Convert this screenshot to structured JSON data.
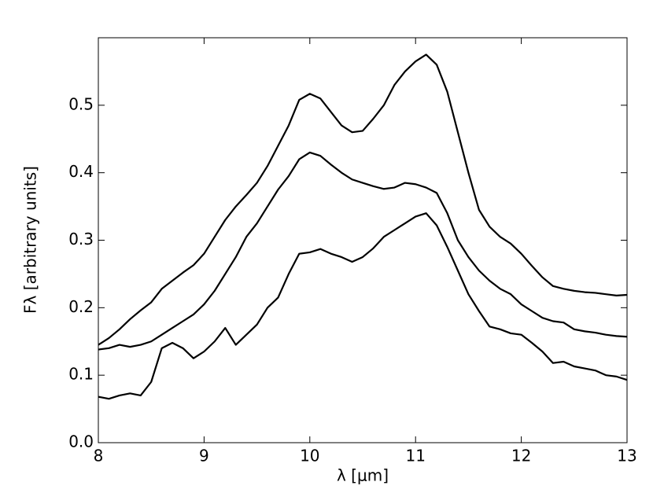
{
  "chart_data": {
    "type": "line",
    "xlabel": "λ [μm]",
    "ylabel": "Fλ [arbitrary units]",
    "x": [
      8.0,
      8.1,
      8.2,
      8.3,
      8.4,
      8.5,
      8.6,
      8.7,
      8.8,
      8.9,
      9.0,
      9.1,
      9.2,
      9.3,
      9.4,
      9.5,
      9.6,
      9.7,
      9.8,
      9.9,
      10.0,
      10.1,
      10.2,
      10.3,
      10.4,
      10.5,
      10.6,
      10.7,
      10.8,
      10.9,
      11.0,
      11.1,
      11.2,
      11.3,
      11.4,
      11.5,
      11.6,
      11.7,
      11.8,
      11.9,
      12.0,
      12.1,
      12.2,
      12.3,
      12.4,
      12.5,
      12.6,
      12.7,
      12.8,
      12.9,
      13.0
    ],
    "series": [
      {
        "color": "#000000",
        "values": [
          0.145,
          0.155,
          0.168,
          0.183,
          0.196,
          0.208,
          0.228,
          0.24,
          0.252,
          0.263,
          0.28,
          0.305,
          0.33,
          0.35,
          0.367,
          0.385,
          0.41,
          0.44,
          0.47,
          0.508,
          0.517,
          0.51,
          0.49,
          0.47,
          0.46,
          0.462,
          0.48,
          0.5,
          0.53,
          0.55,
          0.565,
          0.575,
          0.56,
          0.52,
          0.46,
          0.4,
          0.345,
          0.32,
          0.305,
          0.295,
          0.28,
          0.262,
          0.245,
          0.232,
          0.228,
          0.225,
          0.223,
          0.222,
          0.22,
          0.218,
          0.219
        ]
      },
      {
        "color": "#000000",
        "values": [
          0.138,
          0.14,
          0.145,
          0.142,
          0.145,
          0.15,
          0.16,
          0.17,
          0.18,
          0.19,
          0.205,
          0.225,
          0.25,
          0.275,
          0.305,
          0.325,
          0.35,
          0.375,
          0.395,
          0.42,
          0.43,
          0.425,
          0.412,
          0.4,
          0.39,
          0.385,
          0.38,
          0.376,
          0.378,
          0.385,
          0.383,
          0.378,
          0.37,
          0.34,
          0.3,
          0.275,
          0.255,
          0.24,
          0.228,
          0.22,
          0.205,
          0.195,
          0.185,
          0.18,
          0.178,
          0.168,
          0.165,
          0.163,
          0.16,
          0.158,
          0.157
        ]
      },
      {
        "color": "#000000",
        "values": [
          0.068,
          0.065,
          0.07,
          0.073,
          0.07,
          0.09,
          0.14,
          0.148,
          0.14,
          0.125,
          0.135,
          0.15,
          0.17,
          0.145,
          0.16,
          0.175,
          0.2,
          0.215,
          0.25,
          0.28,
          0.282,
          0.287,
          0.28,
          0.275,
          0.268,
          0.275,
          0.288,
          0.305,
          0.315,
          0.325,
          0.335,
          0.34,
          0.322,
          0.29,
          0.255,
          0.22,
          0.195,
          0.172,
          0.168,
          0.162,
          0.16,
          0.148,
          0.135,
          0.118,
          0.12,
          0.113,
          0.11,
          0.107,
          0.1,
          0.098,
          0.093
        ]
      }
    ],
    "xlim": [
      8,
      13
    ],
    "xticks": [
      8,
      9,
      10,
      11,
      12,
      13
    ],
    "ylim": [
      0,
      0.6
    ],
    "yticks": [
      {
        "value": 0,
        "label": "0.0"
      },
      0.1,
      0.2,
      0.3,
      0.4,
      0.5
    ]
  }
}
